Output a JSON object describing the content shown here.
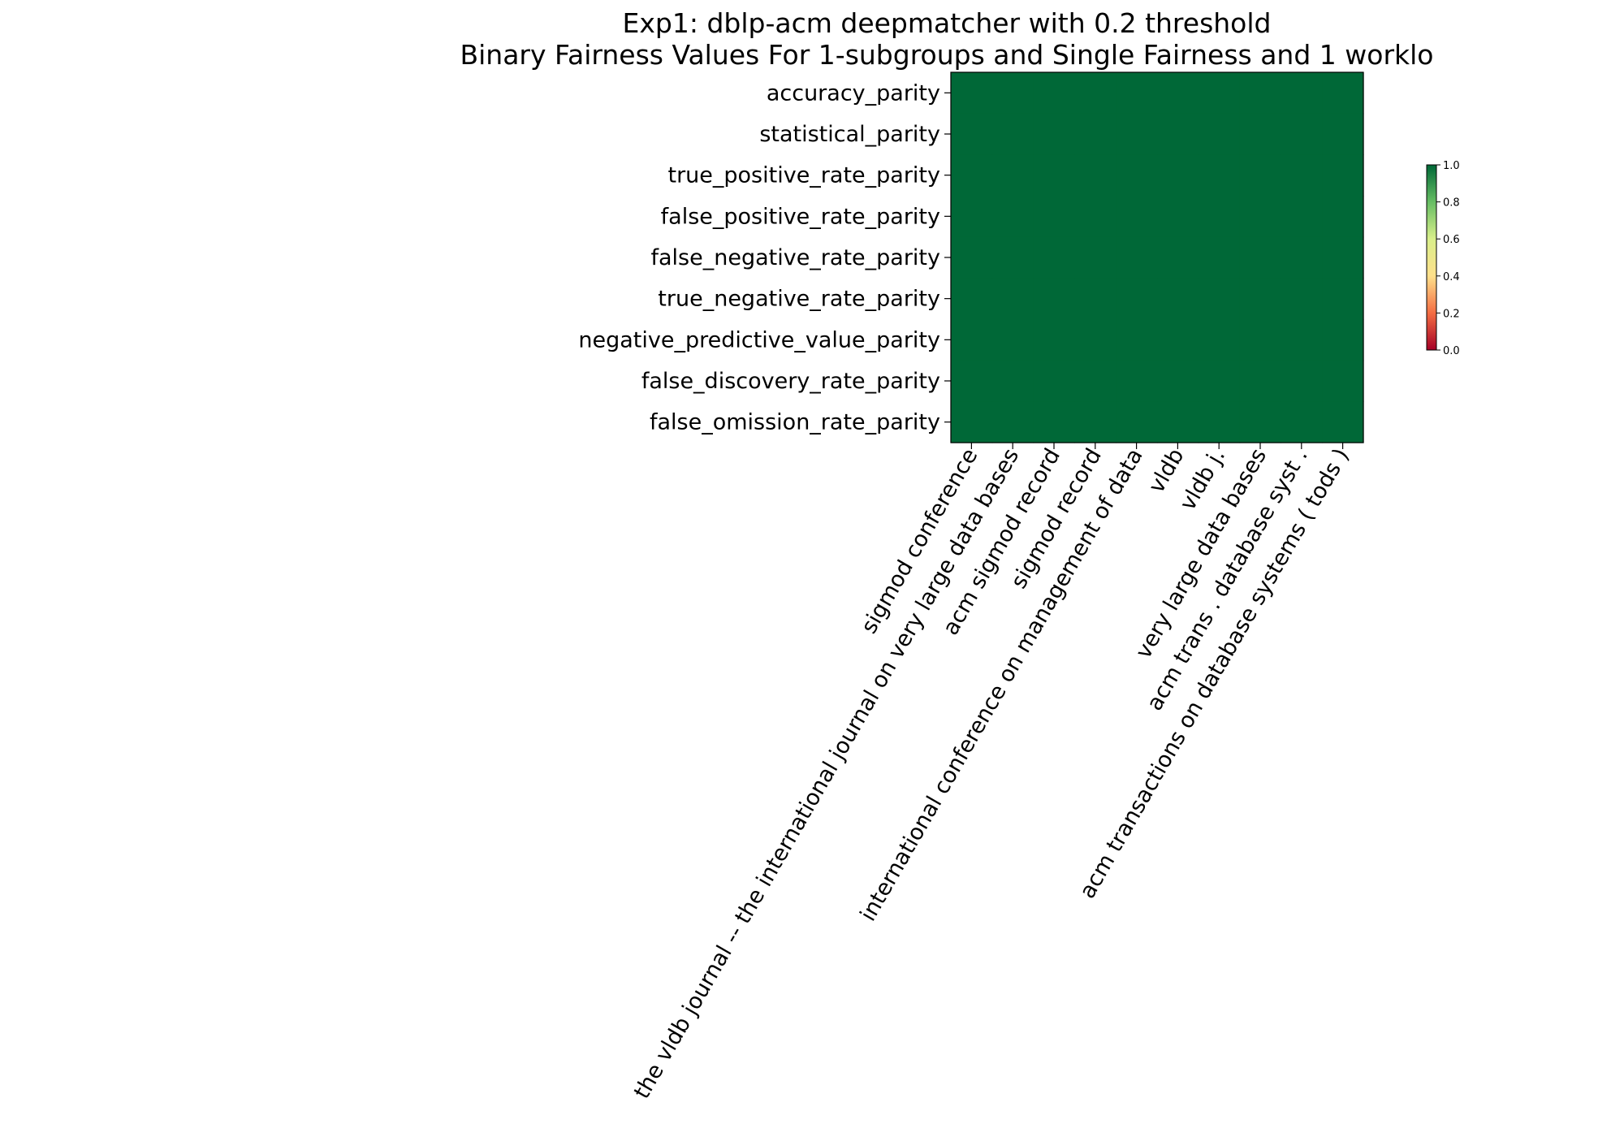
{
  "chart_data": {
    "type": "heatmap",
    "title": [
      "Exp1: dblp-acm deepmatcher with 0.2 threshold",
      "Binary Fairness Values For 1-subgroups and Single Fairness and 1 worklo"
    ],
    "xlabel": "",
    "ylabel": "",
    "rows": [
      "accuracy_parity",
      "statistical_parity",
      "true_positive_rate_parity",
      "false_positive_rate_parity",
      "false_negative_rate_parity",
      "true_negative_rate_parity",
      "negative_predictive_value_parity",
      "false_discovery_rate_parity",
      "false_omission_rate_parity"
    ],
    "columns": [
      "sigmod conference",
      "the vldb journal -- the international journal on very large data bases",
      "acm sigmod record",
      "sigmod record",
      "international conference on management of data",
      "vldb",
      "vldb j.",
      "very large data bases",
      "acm trans . database syst .",
      "acm transactions on database systems ( tods )"
    ],
    "values": [
      [
        1,
        1,
        1,
        1,
        1,
        1,
        1,
        1,
        1,
        1
      ],
      [
        1,
        1,
        1,
        1,
        1,
        1,
        1,
        1,
        1,
        1
      ],
      [
        1,
        1,
        1,
        1,
        1,
        1,
        1,
        1,
        1,
        1
      ],
      [
        1,
        1,
        1,
        1,
        1,
        1,
        1,
        1,
        1,
        1
      ],
      [
        1,
        1,
        1,
        1,
        1,
        1,
        1,
        1,
        1,
        1
      ],
      [
        1,
        1,
        1,
        1,
        1,
        1,
        1,
        1,
        1,
        1
      ],
      [
        1,
        1,
        1,
        1,
        1,
        1,
        1,
        1,
        1,
        1
      ],
      [
        1,
        1,
        1,
        1,
        1,
        1,
        1,
        1,
        1,
        1
      ],
      [
        1,
        1,
        1,
        1,
        1,
        1,
        1,
        1,
        1,
        1
      ]
    ],
    "colormap": "RdYlGn",
    "vmin": 0,
    "vmax": 1,
    "colorbar_ticks": [
      "0.0",
      "0.2",
      "0.4",
      "0.6",
      "0.8",
      "1.0"
    ],
    "colors": {
      "stops": [
        "#a50026",
        "#f46d43",
        "#fee08b",
        "#d9ef8b",
        "#66bd63",
        "#006837"
      ]
    },
    "grid": false,
    "legend": "colorbar right"
  }
}
